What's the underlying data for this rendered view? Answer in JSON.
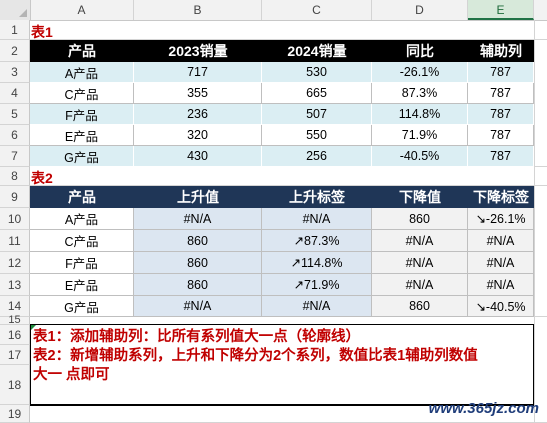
{
  "columns": [
    "A",
    "B",
    "C",
    "D",
    "E"
  ],
  "rows": [
    "1",
    "2",
    "3",
    "4",
    "5",
    "6",
    "7",
    "8",
    "9",
    "10",
    "11",
    "12",
    "13",
    "14",
    "15",
    "16",
    "17",
    "18",
    "19"
  ],
  "table1": {
    "title": "表1",
    "headers": [
      "产品",
      "2023销量",
      "2024销量",
      "同比",
      "辅助列"
    ],
    "rows": [
      [
        "A产品",
        "717",
        "530",
        "-26.1%",
        "787"
      ],
      [
        "C产品",
        "355",
        "665",
        "87.3%",
        "787"
      ],
      [
        "F产品",
        "236",
        "507",
        "114.8%",
        "787"
      ],
      [
        "E产品",
        "320",
        "550",
        "71.9%",
        "787"
      ],
      [
        "G产品",
        "430",
        "256",
        "-40.5%",
        "787"
      ]
    ]
  },
  "table2": {
    "title": "表2",
    "headers": [
      "产品",
      "上升值",
      "上升标签",
      "下降值",
      "下降标签"
    ],
    "rows": [
      [
        "A产品",
        "#N/A",
        "#N/A",
        "860",
        "↘-26.1%"
      ],
      [
        "C产品",
        "860",
        "↗87.3%",
        "#N/A",
        "#N/A"
      ],
      [
        "F产品",
        "860",
        "↗114.8%",
        "#N/A",
        "#N/A"
      ],
      [
        "E产品",
        "860",
        "↗71.9%",
        "#N/A",
        "#N/A"
      ],
      [
        "G产品",
        "#N/A",
        "#N/A",
        "860",
        "↘-40.5%"
      ]
    ]
  },
  "notes": [
    "表1：添加辅助列：比所有系列值大一点（轮廓线）",
    "表2：新增辅助系列，上升和下降分为2个系列，数值比表1辅助列数值",
    "大一  点即可"
  ],
  "watermark": "www.365jz.com",
  "colors": {
    "title_red": "#c00000",
    "header_black": "#000000",
    "header_navy": "#1f3657",
    "light_blue": "#dbeef3",
    "excel_green": "#217346"
  }
}
